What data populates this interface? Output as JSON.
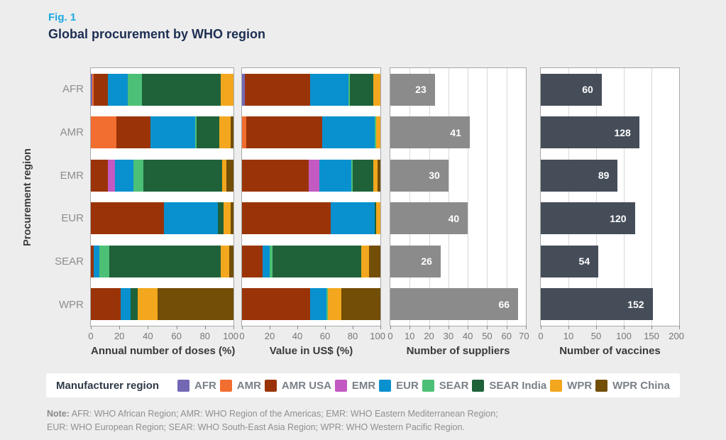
{
  "header": {
    "fig_label": "Fig. 1",
    "title": "Global procurement by WHO region"
  },
  "y_axis_title": "Procurement region",
  "legend": {
    "title": "Manufacturer region",
    "items": [
      {
        "label": "AFR",
        "color": "#7268b4"
      },
      {
        "label": "AMR",
        "color": "#f26d30"
      },
      {
        "label": "AMR USA",
        "color": "#9a3408"
      },
      {
        "label": "EMR",
        "color": "#c35ac2"
      },
      {
        "label": "EUR",
        "color": "#0990cf"
      },
      {
        "label": "SEAR",
        "color": "#4dc077"
      },
      {
        "label": "SEAR India",
        "color": "#1f623a"
      },
      {
        "label": "WPR",
        "color": "#f3a71e"
      },
      {
        "label": "WPR China",
        "color": "#724e06"
      }
    ]
  },
  "note": {
    "label": "Note:",
    "line1": "AFR: WHO African Region; AMR: WHO Region of the Americas; EMR: WHO Eastern Mediterranean Region;",
    "line2": "EUR: WHO European Region; SEAR: WHO South-East Asia Region; WPR: WHO Western Pacific Region."
  },
  "chart_data": {
    "type": "bar",
    "orientation": "horizontal",
    "categories": [
      "AFR",
      "AMR",
      "EMR",
      "EUR",
      "SEAR",
      "WPR"
    ],
    "colors": {
      "AFR": "#7268b4",
      "AMR": "#f26d30",
      "AMR USA": "#9a3408",
      "EMR": "#c35ac2",
      "EUR": "#0990cf",
      "SEAR": "#4dc077",
      "SEAR India": "#1f623a",
      "WPR": "#f3a71e",
      "WPR China": "#724e06",
      "suppliers": "#8b8b8b",
      "vaccines": "#454d59"
    },
    "panels": [
      {
        "key": "doses",
        "kind": "stacked",
        "xlabel": "Annual number of doses (%)",
        "ticks": [
          0,
          20,
          40,
          60,
          80,
          100
        ],
        "grid": false,
        "rows": [
          [
            [
              "AFR",
              1
            ],
            [
              "AMR",
              1
            ],
            [
              "AMR USA",
              10
            ],
            [
              "EUR",
              14
            ],
            [
              "SEAR",
              10
            ],
            [
              "SEAR India",
              55
            ],
            [
              "WPR",
              9
            ]
          ],
          [
            [
              "AMR",
              18
            ],
            [
              "AMR USA",
              24
            ],
            [
              "EUR",
              31
            ],
            [
              "SEAR",
              1
            ],
            [
              "SEAR India",
              16
            ],
            [
              "WPR",
              8
            ],
            [
              "WPR China",
              2
            ]
          ],
          [
            [
              "AMR USA",
              12
            ],
            [
              "EMR",
              5
            ],
            [
              "EUR",
              13
            ],
            [
              "SEAR",
              7
            ],
            [
              "SEAR India",
              55
            ],
            [
              "WPR",
              3
            ],
            [
              "WPR China",
              5
            ]
          ],
          [
            [
              "AMR USA",
              51
            ],
            [
              "EUR",
              38
            ],
            [
              "SEAR India",
              4
            ],
            [
              "WPR",
              5
            ],
            [
              "WPR China",
              2
            ]
          ],
          [
            [
              "AMR USA",
              2
            ],
            [
              "EUR",
              4
            ],
            [
              "SEAR",
              7
            ],
            [
              "SEAR India",
              78
            ],
            [
              "WPR",
              6
            ],
            [
              "WPR China",
              3
            ]
          ],
          [
            [
              "AMR USA",
              21
            ],
            [
              "EUR",
              7
            ],
            [
              "SEAR India",
              5
            ],
            [
              "WPR",
              14
            ],
            [
              "WPR China",
              53
            ]
          ]
        ]
      },
      {
        "key": "value",
        "kind": "stacked",
        "xlabel": "Value in US$ (%)",
        "ticks": [
          0,
          20,
          40,
          60,
          80,
          100
        ],
        "grid": false,
        "rows": [
          [
            [
              "AFR",
              2
            ],
            [
              "AMR USA",
              47
            ],
            [
              "EUR",
              28
            ],
            [
              "SEAR",
              1
            ],
            [
              "SEAR India",
              17
            ],
            [
              "WPR",
              5
            ]
          ],
          [
            [
              "AMR",
              3
            ],
            [
              "AMR USA",
              55
            ],
            [
              "EUR",
              38
            ],
            [
              "SEAR",
              1
            ],
            [
              "WPR",
              3
            ]
          ],
          [
            [
              "AMR USA",
              48
            ],
            [
              "EMR",
              8
            ],
            [
              "EUR",
              23
            ],
            [
              "SEAR",
              1
            ],
            [
              "SEAR India",
              15
            ],
            [
              "WPR",
              3
            ],
            [
              "WPR China",
              2
            ]
          ],
          [
            [
              "AMR USA",
              64
            ],
            [
              "EUR",
              32
            ],
            [
              "SEAR India",
              1
            ],
            [
              "WPR",
              3
            ]
          ],
          [
            [
              "AMR USA",
              15
            ],
            [
              "EUR",
              5
            ],
            [
              "SEAR",
              2
            ],
            [
              "SEAR India",
              64
            ],
            [
              "WPR",
              6
            ],
            [
              "WPR China",
              8
            ]
          ],
          [
            [
              "AMR USA",
              49
            ],
            [
              "EUR",
              12
            ],
            [
              "SEAR",
              1
            ],
            [
              "WPR",
              10
            ],
            [
              "WPR China",
              28
            ]
          ]
        ]
      },
      {
        "key": "suppliers",
        "kind": "single",
        "xlabel": "Number of suppliers",
        "ticks": [
          0,
          10,
          20,
          30,
          40,
          50,
          60,
          70
        ],
        "grid": true,
        "bar_color_key": "suppliers",
        "values": [
          23,
          41,
          30,
          40,
          26,
          66
        ]
      },
      {
        "key": "vaccines",
        "kind": "single",
        "xlabel": "Number of vaccines",
        "ticks": [
          0,
          10,
          50,
          100,
          150,
          200
        ],
        "axis_scale": "equal spacing between listed ticks (piecewise linear)",
        "grid": true,
        "bar_color_key": "vaccines",
        "values": [
          60,
          128,
          89,
          120,
          54,
          152
        ]
      }
    ]
  }
}
